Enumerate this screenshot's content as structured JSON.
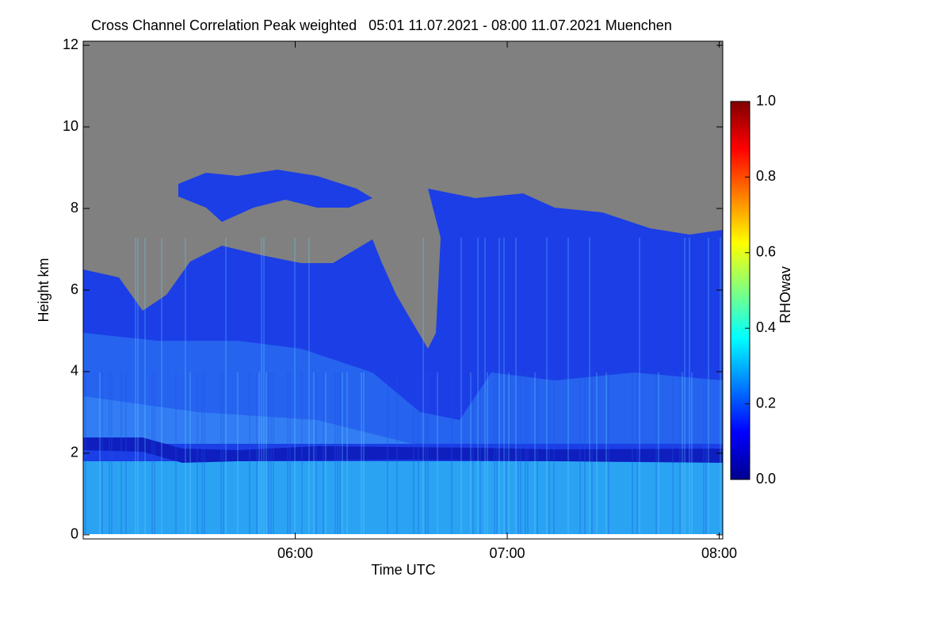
{
  "chart_data": {
    "type": "heatmap",
    "title": "Cross Channel Correlation Peak weighted   05:01 11.07.2021 - 08:00 11.07.2021 Muenchen",
    "x_label": "Time UTC",
    "y_label": "Height km",
    "colorbar_label": "RHOwav",
    "xlim": [
      300,
      481
    ],
    "xticks": [
      {
        "value": 360,
        "label": "06:00"
      },
      {
        "value": 420,
        "label": "07:00"
      },
      {
        "value": 480,
        "label": "08:00"
      }
    ],
    "ylim": [
      -0.1,
      12.1
    ],
    "yticks": [
      0,
      2,
      4,
      6,
      8,
      10,
      12
    ],
    "clim": [
      0,
      1
    ],
    "cticks": [
      {
        "value": 0,
        "label": "0.0"
      },
      {
        "value": 0.2,
        "label": "0.2"
      },
      {
        "value": 0.4,
        "label": "0.4"
      },
      {
        "value": 0.6,
        "label": "0.6"
      },
      {
        "value": 0.8,
        "label": "0.8"
      },
      {
        "value": 1,
        "label": "1.0"
      }
    ],
    "colormap": "jet",
    "missing_color": "#808080"
  }
}
